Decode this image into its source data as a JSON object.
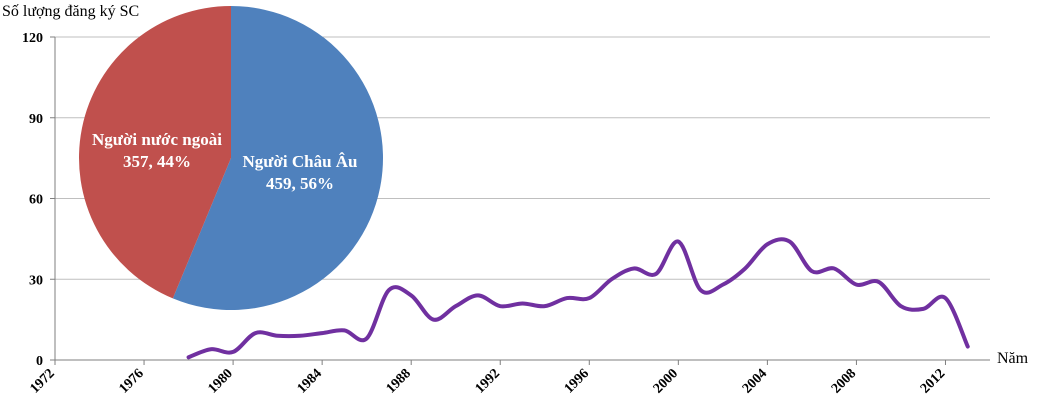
{
  "chart_data": [
    {
      "type": "line",
      "ylabel": "Số lượng đăng ký SC",
      "xlabel": "Năm",
      "xlim": [
        1972,
        2014
      ],
      "ylim": [
        0,
        120
      ],
      "xticks": [
        "1972",
        "1976",
        "1980",
        "1984",
        "1988",
        "1992",
        "1996",
        "2000",
        "2004",
        "2008",
        "2012"
      ],
      "yticks": [
        "0",
        "30",
        "60",
        "90",
        "120"
      ],
      "grid": true,
      "series": [
        {
          "color": "#7030a0",
          "x": [
            1978,
            1979,
            1980,
            1981,
            1982,
            1983,
            1984,
            1985,
            1986,
            1987,
            1988,
            1989,
            1990,
            1991,
            1992,
            1993,
            1994,
            1995,
            1996,
            1997,
            1998,
            1999,
            2000,
            2001,
            2002,
            2003,
            2004,
            2005,
            2006,
            2007,
            2008,
            2009,
            2010,
            2011,
            2012,
            2013
          ],
          "y": [
            1,
            4,
            3,
            10,
            9,
            9,
            10,
            11,
            8,
            26,
            24,
            15,
            20,
            24,
            20,
            21,
            20,
            23,
            23,
            30,
            34,
            32,
            44,
            26,
            28,
            34,
            43,
            44,
            33,
            34,
            28,
            29,
            20,
            19,
            23,
            5
          ]
        }
      ]
    },
    {
      "type": "pie",
      "slices": [
        {
          "label": "Người Châu Âu",
          "value": 459,
          "value_text": "459,  56%",
          "percent": 56,
          "color": "#4f81bd"
        },
        {
          "label": "Người nước ngoài",
          "value": 357,
          "value_text": "357,  44%",
          "percent": 44,
          "color": "#c0504d"
        }
      ]
    }
  ]
}
